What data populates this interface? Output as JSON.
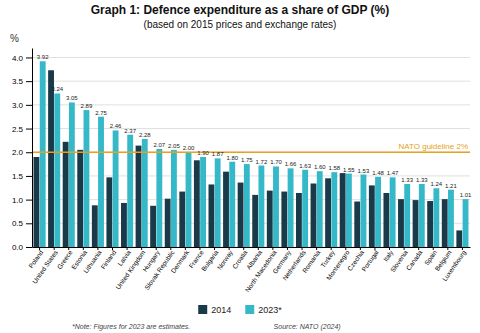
{
  "chart_data": {
    "type": "bar",
    "title": "Graph 1: Defence expenditure as a share of GDP (%)",
    "subtitle": "(based on 2015 prices and exchange rates)",
    "ylabel": "%",
    "categories": [
      "Poland",
      "United States",
      "Greece",
      "Estonia",
      "Lithuania",
      "Finland",
      "Latvia",
      "United Kingdom",
      "Hungary",
      "Slovak Republic",
      "Denmark",
      "France",
      "Bulgaria",
      "Norway",
      "Croatia",
      "Albania",
      "North Macedonia",
      "Germany",
      "Netherlands",
      "Romania",
      "Turkey",
      "Montenegro",
      "Czechia",
      "Portugal",
      "Italy",
      "Slovenia",
      "Canada",
      "Spain",
      "Belgium",
      "Luxembourg"
    ],
    "series": [
      {
        "name": "2014",
        "color": "#1a3a4a",
        "values": [
          1.9,
          3.73,
          2.22,
          2.05,
          0.88,
          1.47,
          0.93,
          2.14,
          0.87,
          1.02,
          1.17,
          1.83,
          1.32,
          1.59,
          1.36,
          1.1,
          1.19,
          1.17,
          1.14,
          1.34,
          1.45,
          1.56,
          0.96,
          1.3,
          1.14,
          1.01,
          0.99,
          0.97,
          1.01,
          0.35
        ]
      },
      {
        "name": "2023*",
        "color": "#35b8c8",
        "data_labels": true,
        "values": [
          3.92,
          3.24,
          3.05,
          2.89,
          2.75,
          2.46,
          2.37,
          2.28,
          2.07,
          2.05,
          2.0,
          1.9,
          1.87,
          1.8,
          1.75,
          1.72,
          1.7,
          1.66,
          1.63,
          1.6,
          1.58,
          1.55,
          1.53,
          1.48,
          1.47,
          1.33,
          1.33,
          1.24,
          1.21,
          1.01
        ],
        "value_labels": [
          "3.92",
          "3.24",
          "3.05",
          "2.89",
          "2.75",
          "2.46",
          "2.37",
          "2.28",
          "2.07",
          "2.05",
          "2.00",
          "1.90",
          "1.87",
          "1.80",
          "1.75",
          "1.72",
          "1.70",
          "1.66",
          "1.63",
          "1.60",
          "1.58",
          "1.55",
          "1.53",
          "1.48",
          "1.47",
          "1.33",
          "1.33",
          "1.24",
          "1.21",
          "1.01"
        ]
      }
    ],
    "ylim": [
      0,
      4.2
    ],
    "yticks": [
      {
        "value": 0,
        "label": "0.0"
      },
      0.5,
      {
        "value": 1,
        "label": "1.0"
      },
      1.5,
      {
        "value": 2,
        "label": "2.0"
      },
      2.5,
      {
        "value": 3,
        "label": "3.0"
      },
      3.5,
      {
        "value": 4,
        "label": "4.0"
      }
    ],
    "grid": true,
    "legend": "bottom",
    "annotations": [
      {
        "type": "hline",
        "y": 2.0,
        "text": "NATO guideline 2%",
        "color": "#e8a020"
      },
      {
        "type": "footnote",
        "text": "*Note: Figures for 2023 are estimates."
      },
      {
        "type": "footnote",
        "text": "Source: NATO (2024)"
      }
    ]
  }
}
